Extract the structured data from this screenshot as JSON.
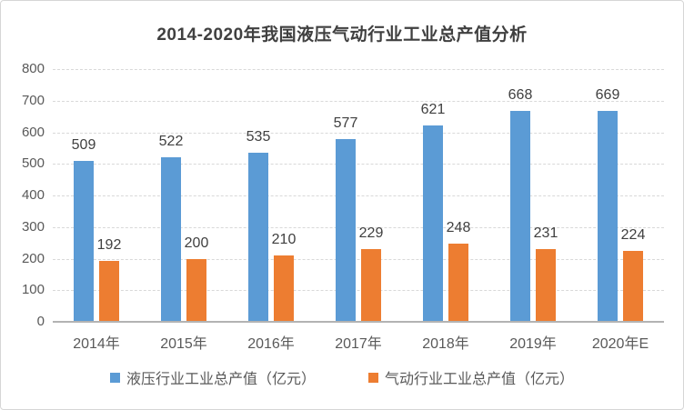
{
  "chart_data": {
    "type": "bar",
    "title": "2014-2020年我国液压气动行业工业总产值分析",
    "categories": [
      "2014年",
      "2015年",
      "2016年",
      "2017年",
      "2018年",
      "2019年",
      "2020年E"
    ],
    "series": [
      {
        "name": "液压行业工业总产值（亿元）",
        "color": "#5B9BD5",
        "values": [
          509,
          522,
          535,
          577,
          621,
          668,
          669
        ]
      },
      {
        "name": "气动行业工业总产值（亿元）",
        "color": "#ED7D31",
        "values": [
          192,
          200,
          210,
          229,
          248,
          231,
          224
        ]
      }
    ],
    "ylim": [
      0,
      800
    ],
    "yticks": [
      0,
      100,
      200,
      300,
      400,
      500,
      600,
      700,
      800
    ],
    "grid": true,
    "data_labels": true,
    "legend_position": "bottom"
  },
  "colors": {
    "grid": "#d9d9d9",
    "axis": "#b3b3b3",
    "tick_text": "#595959",
    "label_text": "#3f3f3f",
    "title_text": "#404040",
    "frame_border": "#d6d6d6",
    "background": "#ffffff"
  }
}
